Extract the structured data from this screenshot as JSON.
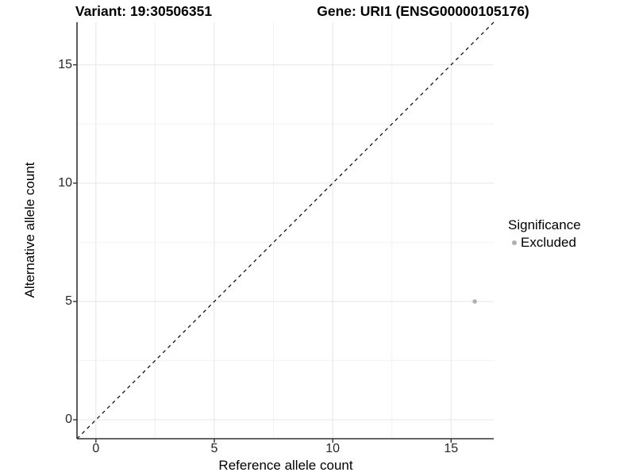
{
  "figure": {
    "title_left": "Variant: 19:30506351",
    "title_right": "Gene: URI1 (ENSG00000105176)"
  },
  "chart_data": {
    "type": "scatter",
    "title": "Variant: 19:30506351 / Gene: URI1 (ENSG00000105176)",
    "xlabel": "Reference allele count",
    "ylabel": "Alternative allele count",
    "xlim": [
      -0.8,
      16.8
    ],
    "ylim": [
      -0.8,
      16.8
    ],
    "x_major_ticks": [
      0,
      5,
      10,
      15
    ],
    "y_major_ticks": [
      0,
      5,
      10,
      15
    ],
    "x_minor_ticks": [
      2.5,
      7.5,
      12.5
    ],
    "y_minor_ticks": [
      2.5,
      7.5,
      12.5
    ],
    "grid": "major+minor",
    "series": [
      {
        "name": "Excluded",
        "points": [
          {
            "x": 16,
            "y": 5
          }
        ]
      }
    ],
    "reference_line": {
      "kind": "identity y=x",
      "style": "dashed",
      "color": "#000000",
      "dash": [
        4.5,
        4.5
      ]
    },
    "legend": {
      "title": "Significance",
      "position": "right",
      "items": [
        {
          "label": "Excluded",
          "marker": "circle",
          "color": "#b0b0b0"
        }
      ]
    },
    "colors": {
      "point": "#b0b0b0",
      "grid_major": "#e5e5e5",
      "grid_minor": "#f2f2f2",
      "axis_line": "#333333",
      "tick_mark": "#333333",
      "text": "#000000"
    },
    "point_radius": 2.8
  }
}
